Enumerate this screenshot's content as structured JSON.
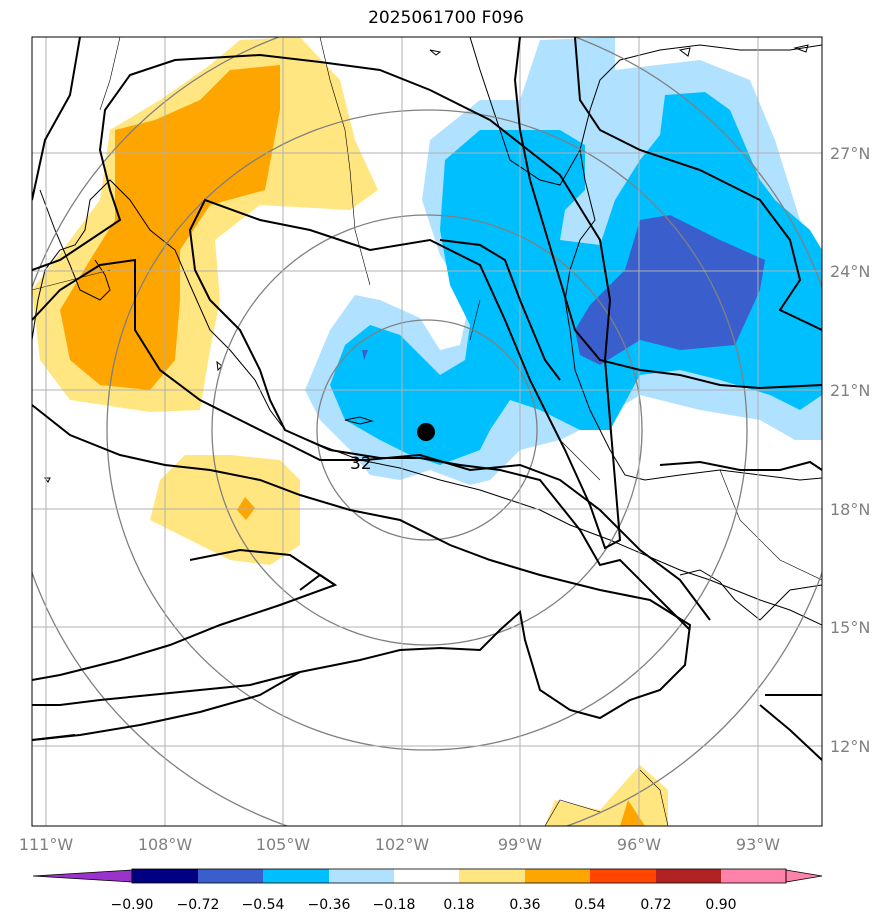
{
  "title": "2025061700 F096",
  "map": {
    "lon_labels": [
      "111°W",
      "108°W",
      "105°W",
      "102°W",
      "99°W",
      "96°W",
      "93°W"
    ],
    "lat_labels": [
      "27°N",
      "24°N",
      "21°N",
      "18°N",
      "15°N",
      "12°N"
    ],
    "contour_label": "32",
    "storm_marker": {
      "lon": -101.4,
      "lat": 19.9
    },
    "colors": {
      "c_neg090": "#9933cc",
      "c_neg072": "#000080",
      "c_neg054": "#3a5fcd",
      "c_neg036": "#00bfff",
      "c_neg018": "#b0e2ff",
      "c_pos018": "#ffe680",
      "c_pos036": "#ffa500",
      "c_pos054": "#ff4500",
      "c_pos072": "#b22222",
      "c_pos090": "#ff82ab"
    }
  },
  "colorbar": {
    "ticks": [
      "−0.90",
      "−0.72",
      "−0.54",
      "−0.36",
      "−0.18",
      "0.18",
      "0.36",
      "0.54",
      "0.72",
      "0.90"
    ],
    "colors": [
      "#9933cc",
      "#000080",
      "#3a5fcd",
      "#00bfff",
      "#b0e2ff",
      "#ffffff",
      "#ffe680",
      "#ffa500",
      "#ff4500",
      "#b22222",
      "#ff82ab"
    ]
  }
}
